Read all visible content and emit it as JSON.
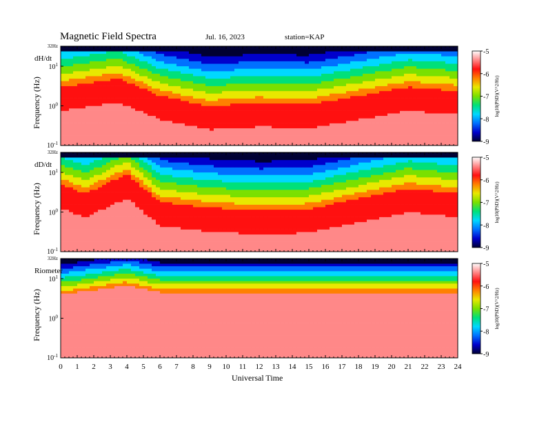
{
  "header": {
    "title": "Magnetic  Field  Spectra",
    "date": "Jul.  16, 2023",
    "station": "station=KAP"
  },
  "colorbar": {
    "label": "log10(PSD)(V^2/Hz)",
    "ticks": [
      "-5",
      "-6",
      "-7",
      "-8",
      "-9"
    ]
  },
  "colors": {
    "scale": [
      "#000033",
      "#0000cc",
      "#0070ff",
      "#00d8ff",
      "#00e07a",
      "#7ae000",
      "#e8e800",
      "#ff8000",
      "#ff1010",
      "#ff8888",
      "#ffffff"
    ]
  },
  "chart_data": [
    {
      "type": "heatmap",
      "panel": "dH/dt",
      "ylabel": "Frequency  (Hz)",
      "ylim_hz": [
        0.1,
        32
      ],
      "ytick_labels": [
        "32Hz",
        "10^1",
        "10^0",
        "10^-1"
      ],
      "xlim": [
        0,
        24
      ],
      "grid": false,
      "value_range": [
        -9,
        -5
      ],
      "description_profile": [
        {
          "ut": 0,
          "red_top_hz": 3.0
        },
        {
          "ut": 3.5,
          "red_top_hz": 5.0
        },
        {
          "ut": 6,
          "red_top_hz": 1.8
        },
        {
          "ut": 9,
          "red_top_hz": 1.0
        },
        {
          "ut": 12,
          "red_top_hz": 1.2
        },
        {
          "ut": 15,
          "red_top_hz": 1.1
        },
        {
          "ut": 18,
          "red_top_hz": 1.8
        },
        {
          "ut": 21,
          "red_top_hz": 3.0
        },
        {
          "ut": 24,
          "red_top_hz": 2.4
        }
      ]
    },
    {
      "type": "heatmap",
      "panel": "dD/dt",
      "ylabel": "Frequency  (Hz)",
      "ylim_hz": [
        0.1,
        32
      ],
      "ytick_labels": [
        "32Hz",
        "10^1",
        "10^0",
        "10^-1"
      ],
      "xlim": [
        0,
        24
      ],
      "grid": false,
      "value_range": [
        -9,
        -5
      ],
      "description_profile": [
        {
          "ut": 0,
          "red_top_hz": 5.0
        },
        {
          "ut": 1.5,
          "red_top_hz": 3.0
        },
        {
          "ut": 4,
          "red_top_hz": 9.0
        },
        {
          "ut": 6,
          "red_top_hz": 1.8
        },
        {
          "ut": 9,
          "red_top_hz": 1.3
        },
        {
          "ut": 12,
          "red_top_hz": 1.1
        },
        {
          "ut": 15,
          "red_top_hz": 1.2
        },
        {
          "ut": 18,
          "red_top_hz": 2.2
        },
        {
          "ut": 21,
          "red_top_hz": 4.0
        },
        {
          "ut": 24,
          "red_top_hz": 3.0
        }
      ]
    },
    {
      "type": "heatmap",
      "panel": "Riometer",
      "ylabel": "Frequency  (Hz)",
      "ylim_hz": [
        0.1,
        32
      ],
      "ytick_labels": [
        "32Hz",
        "10^1",
        "10^0",
        "10^-1"
      ],
      "xlim": [
        0,
        24
      ],
      "xlabel": "Universal Time",
      "xtick_labels": [
        "0",
        "1",
        "2",
        "3",
        "4",
        "5",
        "6",
        "7",
        "8",
        "9",
        "10",
        "11",
        "12",
        "13",
        "14",
        "15",
        "16",
        "17",
        "18",
        "19",
        "20",
        "21",
        "22",
        "23",
        "24"
      ],
      "grid": false,
      "value_range": [
        -9,
        -5
      ],
      "description_profile": [
        {
          "ut": 0,
          "red_top_hz": 7.0
        },
        {
          "ut": 4,
          "red_top_hz": 12.0
        },
        {
          "ut": 6,
          "red_top_hz": 8.0
        },
        {
          "ut": 12,
          "red_top_hz": 8.0
        },
        {
          "ut": 24,
          "red_top_hz": 8.0
        }
      ]
    }
  ]
}
